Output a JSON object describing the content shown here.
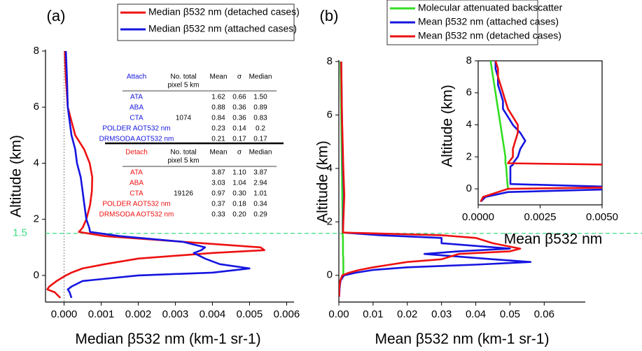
{
  "chart_data": [
    {
      "type": "line",
      "panel": "(a)",
      "x_label": "Median β532 nm (km-1 sr-1)",
      "y_label": "Altitude (km)",
      "xlim": [
        -0.0005,
        0.0062
      ],
      "ylim": [
        -0.95,
        8
      ],
      "xticks": [
        {
          "value": 0,
          "label": "0.000"
        },
        {
          "value": 0.001,
          "label": "0.001"
        },
        {
          "value": 0.002,
          "label": "0.002"
        },
        {
          "value": 0.003,
          "label": "0.003"
        },
        {
          "value": 0.004,
          "label": "0.004"
        },
        {
          "value": 0.005,
          "label": "0.005"
        },
        {
          "value": 0.006,
          "label": "0.006"
        }
      ],
      "yticks": [
        0,
        2,
        4,
        6,
        8
      ],
      "hline": 1.5,
      "hline_color": "#3ddc84",
      "y": [
        8,
        7,
        6,
        5,
        4.5,
        4,
        3.5,
        3,
        2.5,
        2,
        1.7,
        1.55,
        1.4,
        1.2,
        1,
        0.9,
        0.8,
        0.6,
        0.4,
        0.25,
        0.1,
        0,
        -0.2,
        -0.4,
        -0.5,
        -0.6,
        -0.8
      ],
      "series": [
        {
          "name": "Median β532 nm (detached cases)",
          "color": "#ee1111",
          "values": [
            2e-05,
            5e-05,
            0.0001,
            0.0003,
            0.00054,
            0.00069,
            0.00076,
            0.00075,
            0.0007,
            0.0006,
            0.0005,
            0.0004,
            0.0011,
            0.0032,
            0.0053,
            0.0054,
            0.004,
            0.002,
            0.0011,
            0.0005,
            0.0002,
            5e-05,
            -0.0002,
            -0.0004,
            -0.00045,
            -0.00025,
            -0.0001
          ]
        },
        {
          "name": "Median β532 nm (attached cases)",
          "color": "#1515e0",
          "values": [
            5e-05,
            8e-05,
            0.0001,
            0.0002,
            0.0003,
            0.00035,
            0.00045,
            0.0005,
            0.00055,
            0.0006,
            0.00068,
            0.0007,
            0.0015,
            0.0032,
            0.0038,
            0.0037,
            0.0035,
            0.0038,
            0.0042,
            0.005,
            0.004,
            0.002,
            0.0005,
            0.0002,
            0.0001,
            0.00015,
            0.0002
          ]
        }
      ],
      "tables": [
        {
          "title": "Attach",
          "color": "#1515e0",
          "header": [
            "No. total",
            "pixel 5 km",
            "Mean",
            "σ",
            "Median"
          ],
          "total": "1074",
          "rows": [
            [
              "ATA",
              "1.62",
              "0.66",
              "1.50"
            ],
            [
              "ABA",
              "0.88",
              "0.36",
              "0.89"
            ],
            [
              "CTA",
              "0.84",
              "0.36",
              "0.83"
            ],
            [
              "POLDER AOT532 nm",
              "0.23",
              "0.14",
              "0.2"
            ],
            [
              "DRMSODA AOT532 nm",
              "0.21",
              "0.17",
              "0.17"
            ]
          ]
        },
        {
          "title": "Detach",
          "color": "#ee1111",
          "header": [
            "No. total",
            "pixel 5 km",
            "Mean",
            "σ",
            "Median"
          ],
          "total": "19126",
          "rows": [
            [
              "ATA",
              "3.87",
              "1.10",
              "3.87"
            ],
            [
              "ABA",
              "3.03",
              "1.04",
              "2.94"
            ],
            [
              "CTA",
              "0.97",
              "0.30",
              "1.01"
            ],
            [
              "POLDER AOT532 nm",
              "0.37",
              "0.18",
              "0.34"
            ],
            [
              "DRMSODA AOT532 nm",
              "0.33",
              "0.20",
              "0.29"
            ]
          ]
        }
      ]
    },
    {
      "type": "line",
      "panel": "(b)",
      "x_label": "Mean β532 nm (km-1 sr-1)",
      "y_label": "Altitude (km)",
      "xlim": [
        0,
        0.072
      ],
      "ylim": [
        -1,
        8
      ],
      "xticks": [
        {
          "value": 0,
          "label": "0.00"
        },
        {
          "value": 0.01,
          "label": "0.01"
        },
        {
          "value": 0.02,
          "label": "0.02"
        },
        {
          "value": 0.03,
          "label": "0.03"
        },
        {
          "value": 0.04,
          "label": "0.04"
        },
        {
          "value": 0.05,
          "label": "0.05"
        },
        {
          "value": 0.06,
          "label": "0.06"
        }
      ],
      "yticks": [
        0,
        2,
        4,
        6,
        8
      ],
      "y": [
        8,
        6,
        4,
        3,
        2,
        1.6,
        1.5,
        1.4,
        1.2,
        1.0,
        0.9,
        0.8,
        0.6,
        0.5,
        0.4,
        0.3,
        0.2,
        0.1,
        0,
        -0.2,
        -0.5,
        -0.8
      ],
      "series": [
        {
          "name": "Molecular attenuated backscatter",
          "color": "#33dd22",
          "values": [
            0.0005,
            0.0007,
            0.0009,
            0.001,
            0.0011,
            0.0011,
            0.0011,
            0.0012,
            0.0012,
            0.0012,
            0.0012,
            0.0012,
            0.0013,
            0.0013,
            0.0013,
            0.0013,
            0.0013,
            0.0013,
            0.0013,
            null,
            null,
            null
          ]
        },
        {
          "name": "Mean β532 nm (attached cases)",
          "color": "#1515e0",
          "values": [
            0.0007,
            0.0009,
            0.0012,
            0.0015,
            0.0012,
            0.0012,
            0.012,
            0.03,
            0.03,
            0.05,
            0.035,
            0.025,
            0.045,
            0.056,
            0.04,
            0.02,
            0.01,
            0.005,
            0.0015,
            0.0005,
            0.0002,
            0.0001
          ]
        },
        {
          "name": "Mean β532 nm (detached cases)",
          "color": "#ee1111",
          "values": [
            0.0007,
            0.0009,
            0.0013,
            0.0016,
            0.0013,
            0.0012,
            0.03,
            0.04,
            0.045,
            0.053,
            0.05,
            0.035,
            0.03,
            0.02,
            0.015,
            0.01,
            0.006,
            0.003,
            0.001,
            0.0004,
            0.0001,
            0.0001
          ]
        }
      ]
    },
    {
      "type": "line",
      "inset": true,
      "x_label": "Mean β532 nm",
      "y_label": "Altitude (km)",
      "xlim": [
        0,
        0.005
      ],
      "ylim": [
        -1,
        8
      ],
      "xticks": [
        {
          "value": 0,
          "label": "0.0000"
        },
        {
          "value": 0.0025,
          "label": "0.0025"
        },
        {
          "value": 0.005,
          "label": "0.0050"
        }
      ],
      "yticks": [
        0,
        2,
        4,
        6,
        8
      ],
      "y": [
        8,
        7.5,
        7,
        6.5,
        6,
        5.5,
        5,
        4.5,
        4,
        3.5,
        3,
        2.5,
        2,
        1.6,
        1.5,
        1.4,
        0.3,
        0.1,
        0,
        -0.2,
        -0.5,
        -0.8
      ],
      "series": [
        {
          "color": "#33dd22",
          "values": [
            0.0005,
            0.00055,
            0.0006,
            0.00065,
            0.0007,
            0.00075,
            0.0008,
            0.00085,
            0.0009,
            0.00095,
            0.001,
            0.00105,
            0.0011,
            0.0011,
            0.00112,
            0.00113,
            0.00118,
            0.0012,
            0.0012,
            null,
            null,
            null
          ]
        },
        {
          "color": "#1515e0",
          "values": [
            0.0007,
            0.0007,
            0.0008,
            0.0008,
            0.0009,
            0.001,
            0.001,
            0.0012,
            0.0014,
            0.0017,
            0.0019,
            0.0017,
            0.0016,
            0.0014,
            0.0014,
            0.0013,
            0.0013,
            0.006,
            0.006,
            0.0012,
            0.0003,
            0.0001
          ]
        },
        {
          "color": "#ee1111",
          "values": [
            0.0007,
            0.0008,
            0.0008,
            0.0009,
            0.001,
            0.0011,
            0.0012,
            0.0014,
            0.0016,
            0.0016,
            0.0015,
            0.0014,
            0.0014,
            0.0012,
            0.006,
            0.006,
            0.006,
            0.006,
            0.0012,
            0.0008,
            0.0002,
            0.0001
          ]
        }
      ]
    }
  ]
}
